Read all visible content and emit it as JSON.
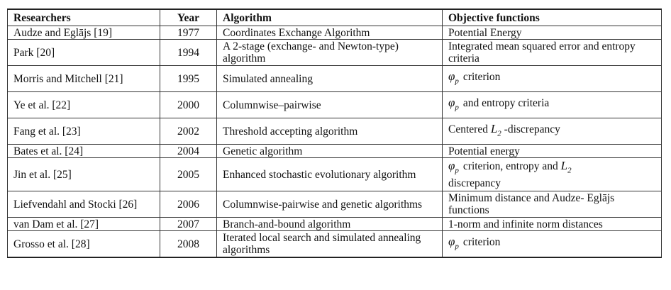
{
  "headers": [
    "Researchers",
    "Year",
    "Algorithm",
    "Objective functions"
  ],
  "rows": [
    {
      "researchers": "Audze and Eglājs [19]",
      "year": "1977",
      "algorithm": "Coordinates Exchange Algorithm",
      "objective": "Potential Energy"
    },
    {
      "researchers": "Park [20]",
      "year": "1994",
      "algorithm": "A 2-stage (exchange- and Newton-type) algorithm",
      "objective": "Integrated mean squared error and entropy criteria"
    },
    {
      "researchers": "Morris and Mitchell [21]",
      "year": "1995",
      "algorithm": "Simulated annealing",
      "objective_symbol": "φ",
      "objective_sub": "p",
      "objective": "criterion"
    },
    {
      "researchers": "Ye et al. [22]",
      "year": "2000",
      "algorithm": "Columnwise–pairwise",
      "objective_symbol": "φ",
      "objective_sub": "p",
      "objective": "and entropy criteria"
    },
    {
      "researchers": "Fang et al. [23]",
      "year": "2002",
      "algorithm": "Threshold accepting algorithm",
      "objective_pre": "Centered",
      "objective_symbol": "L",
      "objective_sub": "2",
      "objective": "-discrepancy"
    },
    {
      "researchers": "Bates et al. [24]",
      "year": "2004",
      "algorithm": "Genetic algorithm",
      "objective": "Potential energy"
    },
    {
      "researchers": "Jin et al. [25]",
      "year": "2005",
      "algorithm": "Enhanced stochastic evolutionary algorithm",
      "objective_symbol": "φ",
      "objective_sub": "p",
      "objective": "criterion, entropy and",
      "objective_symbol2": "L",
      "objective_sub2": "2",
      "objective_line2": "discrepancy"
    },
    {
      "researchers": "Liefvendahl and Stocki [26]",
      "year": "2006",
      "algorithm": "Columnwise-pairwise and genetic algorithms",
      "objective": "Minimum distance and Audze- Eglājs functions"
    },
    {
      "researchers": "van Dam et al. [27]",
      "year": "2007",
      "algorithm": "Branch-and-bound algorithm",
      "objective": "1-norm and infinite norm distances"
    },
    {
      "researchers": "Grosso et al. [28]",
      "year": "2008",
      "algorithm": "Iterated local search and simulated annealing algorithms",
      "objective_symbol": "φ",
      "objective_sub": "p",
      "objective": "criterion"
    }
  ]
}
